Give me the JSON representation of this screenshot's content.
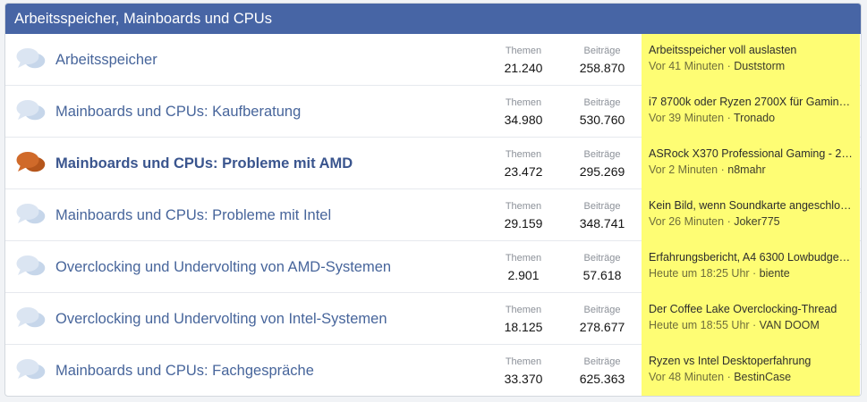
{
  "category": {
    "title": "Arbeitsspeicher, Mainboards und CPUs"
  },
  "labels": {
    "threads": "Themen",
    "posts": "Beiträge",
    "separator": " · "
  },
  "colors": {
    "header": "#4765a5",
    "icon_read": "#c6d6ea",
    "icon_unread": "#d06a2a",
    "highlight": "#fefd74"
  },
  "nodes": [
    {
      "title": "Arbeitsspeicher",
      "unread": false,
      "icon": "forum-read-icon",
      "threads": "21.240",
      "posts": "258.870",
      "latest_title": "Arbeitsspeicher voll auslasten",
      "latest_time": "Vor 41 Minuten",
      "latest_user": "Duststorm"
    },
    {
      "title": "Mainboards und CPUs: Kaufberatung",
      "unread": false,
      "icon": "forum-read-icon",
      "threads": "34.980",
      "posts": "530.760",
      "latest_title": "i7 8700k oder Ryzen 2700X für Gaming…",
      "latest_time": "Vor 39 Minuten",
      "latest_user": "Tronado"
    },
    {
      "title": "Mainboards und CPUs: Probleme mit AMD",
      "unread": true,
      "icon": "forum-unread-icon",
      "threads": "23.472",
      "posts": "295.269",
      "latest_title": "ASRock X370 Professional Gaming - 2…",
      "latest_time": "Vor 2 Minuten",
      "latest_user": "n8mahr"
    },
    {
      "title": "Mainboards und CPUs: Probleme mit Intel",
      "unread": false,
      "icon": "forum-read-icon",
      "threads": "29.159",
      "posts": "348.741",
      "latest_title": "Kein Bild, wenn Soundkarte angeschlo…",
      "latest_time": "Vor 26 Minuten",
      "latest_user": "Joker775"
    },
    {
      "title": "Overclocking und Undervolting von AMD-Systemen",
      "unread": false,
      "icon": "forum-read-icon",
      "threads": "2.901",
      "posts": "57.618",
      "latest_title": "Erfahrungsbericht, A4 6300 Lowbudge…",
      "latest_time": "Heute um 18:25 Uhr",
      "latest_user": "biente"
    },
    {
      "title": "Overclocking und Undervolting von Intel-Systemen",
      "unread": false,
      "icon": "forum-read-icon",
      "threads": "18.125",
      "posts": "278.677",
      "latest_title": "Der Coffee Lake Overclocking-Thread",
      "latest_time": "Heute um 18:55 Uhr",
      "latest_user": "VAN DOOM"
    },
    {
      "title": "Mainboards und CPUs: Fachgespräche",
      "unread": false,
      "icon": "forum-read-icon",
      "threads": "33.370",
      "posts": "625.363",
      "latest_title": "Ryzen vs Intel Desktoperfahrung",
      "latest_time": "Vor 48 Minuten",
      "latest_user": "BestinCase"
    }
  ]
}
